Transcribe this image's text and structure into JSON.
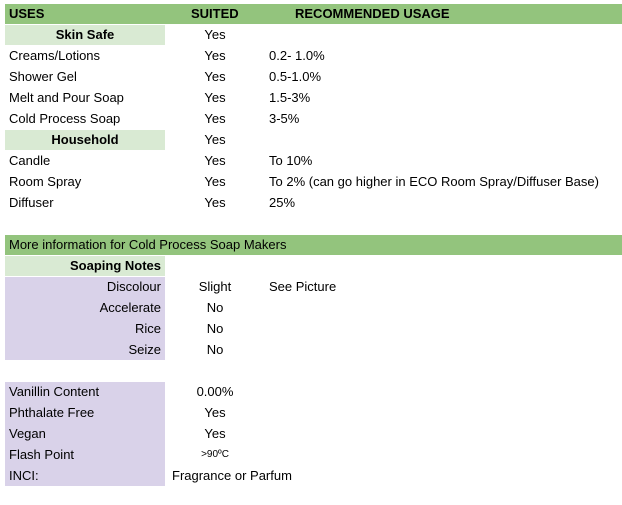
{
  "header": {
    "col_uses": "USES",
    "col_suited": "SUITED",
    "col_recommended": "RECOMMENDED USAGE"
  },
  "usage": {
    "skin_safe": {
      "label": "Skin Safe",
      "suited": "Yes"
    },
    "rows_skin": [
      {
        "use": "Creams/Lotions",
        "suited": "Yes",
        "usage": "0.2- 1.0%"
      },
      {
        "use": "Shower Gel",
        "suited": "Yes",
        "usage": "0.5-1.0%"
      },
      {
        "use": "Melt and Pour Soap",
        "suited": "Yes",
        "usage": "1.5-3%"
      },
      {
        "use": "Cold Process Soap",
        "suited": "Yes",
        "usage": "3-5%"
      }
    ],
    "household": {
      "label": "Household",
      "suited": "Yes"
    },
    "rows_household": [
      {
        "use": "Candle",
        "suited": "Yes",
        "usage": "To 10%"
      },
      {
        "use": "Room Spray",
        "suited": "Yes",
        "usage": "To 2% (can go higher in ECO Room Spray/Diffuser Base)"
      },
      {
        "use": "Diffuser",
        "suited": "Yes",
        "usage": "25%"
      }
    ]
  },
  "cp_section": {
    "title": "More information for Cold Process Soap Makers",
    "notes_label": "Soaping Notes",
    "notes": [
      {
        "label": "Discolour",
        "value": "Slight",
        "extra": "See Picture"
      },
      {
        "label": "Accelerate",
        "value": "No",
        "extra": ""
      },
      {
        "label": "Rice",
        "value": "No",
        "extra": ""
      },
      {
        "label": "Seize",
        "value": "No",
        "extra": ""
      }
    ]
  },
  "properties": [
    {
      "label": "Vanillin Content",
      "value": "0.00%"
    },
    {
      "label": "Phthalate Free",
      "value": "Yes"
    },
    {
      "label": "Vegan",
      "value": "Yes"
    },
    {
      "label": "Flash Point",
      "value": ">90ºC"
    },
    {
      "label": "INCI:",
      "value": "Fragrance or Parfum"
    }
  ],
  "colors": {
    "header_green": "#93c47d",
    "light_green": "#d9ead3",
    "lavender": "#d9d2e9"
  }
}
